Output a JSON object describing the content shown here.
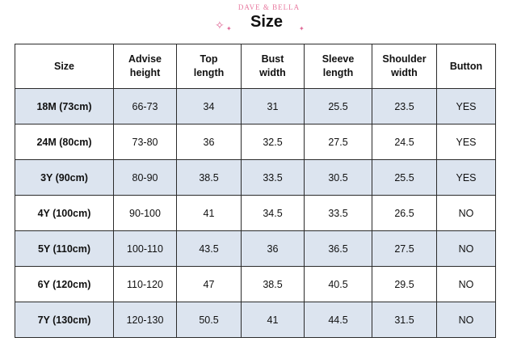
{
  "header": {
    "brand": "DAVE & BELLA",
    "title": "Size"
  },
  "colors": {
    "accent": "#e06a98",
    "row_shade": "#dce4ef",
    "border": "#2b2b2b"
  },
  "icons": [
    "sparkle-icon"
  ],
  "table": {
    "headers": [
      [
        "Size"
      ],
      [
        "Advise",
        "height"
      ],
      [
        "Top",
        "length"
      ],
      [
        "Bust",
        "width"
      ],
      [
        "Sleeve",
        "length"
      ],
      [
        "Shoulder",
        "width"
      ],
      [
        "Button"
      ]
    ],
    "rows": [
      [
        "18M (73cm)",
        "66-73",
        "34",
        "31",
        "25.5",
        "23.5",
        "YES"
      ],
      [
        "24M (80cm)",
        "73-80",
        "36",
        "32.5",
        "27.5",
        "24.5",
        "YES"
      ],
      [
        "3Y (90cm)",
        "80-90",
        "38.5",
        "33.5",
        "30.5",
        "25.5",
        "YES"
      ],
      [
        "4Y (100cm)",
        "90-100",
        "41",
        "34.5",
        "33.5",
        "26.5",
        "NO"
      ],
      [
        "5Y (110cm)",
        "100-110",
        "43.5",
        "36",
        "36.5",
        "27.5",
        "NO"
      ],
      [
        "6Y (120cm)",
        "110-120",
        "47",
        "38.5",
        "40.5",
        "29.5",
        "NO"
      ],
      [
        "7Y (130cm)",
        "120-130",
        "50.5",
        "41",
        "44.5",
        "31.5",
        "NO"
      ]
    ]
  }
}
